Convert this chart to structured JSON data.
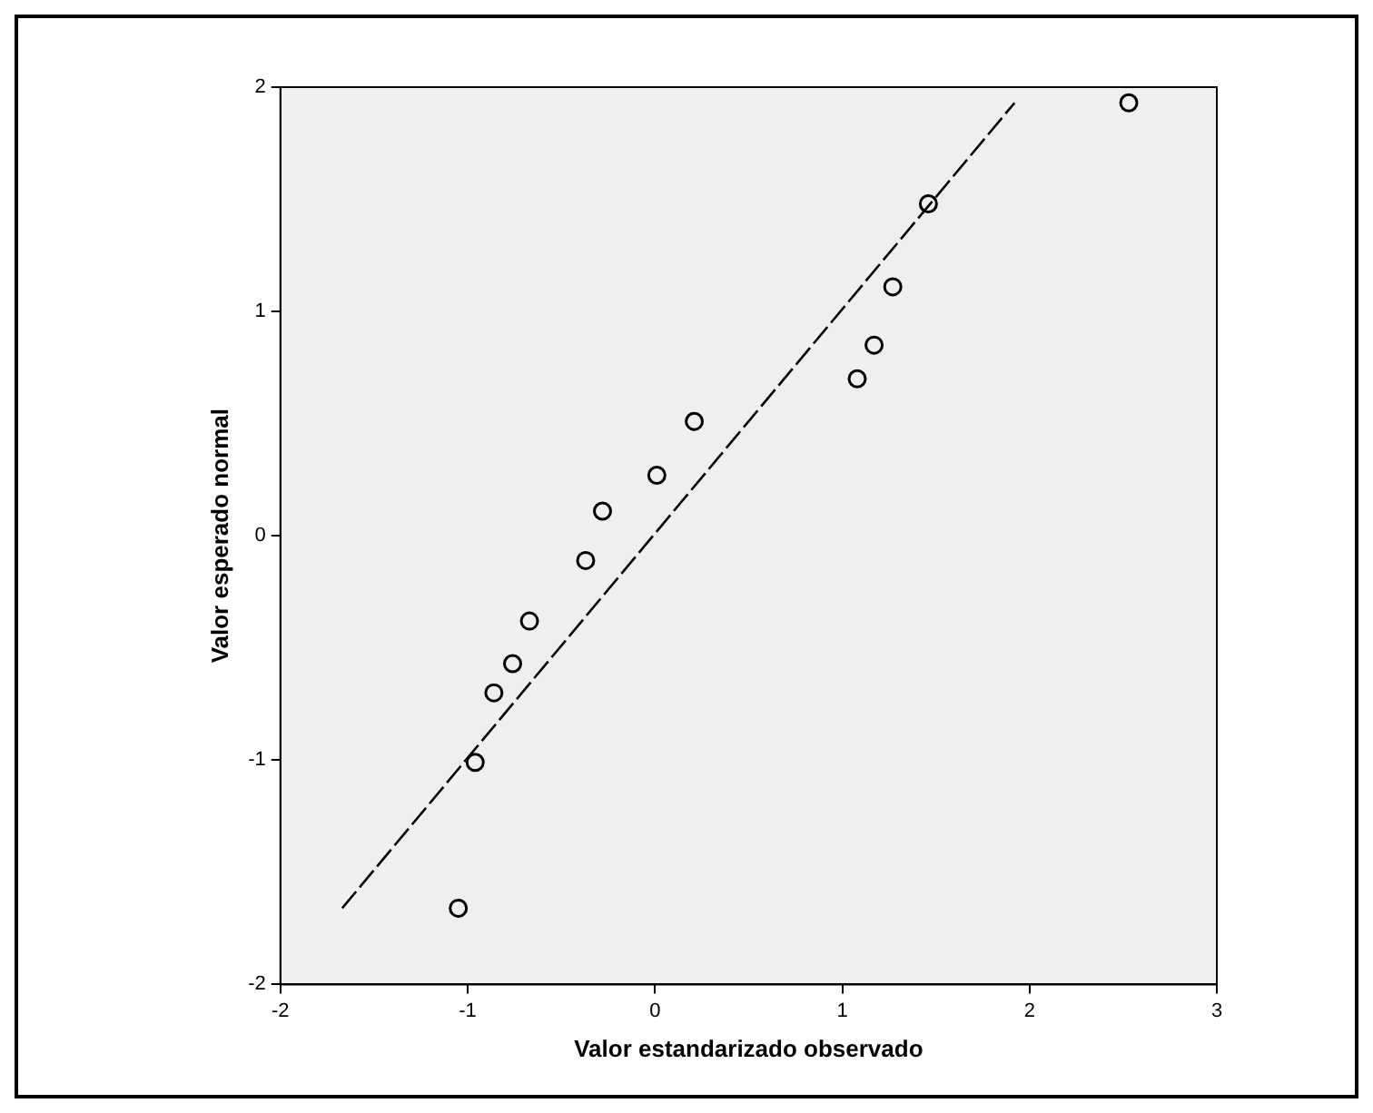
{
  "chart_data": {
    "type": "scatter",
    "xlabel": "Valor estandarizado observado",
    "ylabel": "Valor esperado normal",
    "xlim": [
      -2,
      3
    ],
    "xticks": [
      -2,
      -1,
      0,
      1,
      2,
      3
    ],
    "ylim": [
      -2,
      2
    ],
    "yticks": [
      -2,
      -1,
      0,
      1,
      2
    ],
    "grid": false,
    "legend": false,
    "marker": "circle",
    "series": [
      {
        "color": "#000000",
        "x": [
          2.53,
          1.46,
          1.27,
          1.17,
          1.08,
          0.21,
          0.01,
          -0.28,
          -0.37,
          -0.67,
          -0.76,
          -0.86,
          -0.96,
          -1.05
        ],
        "values": [
          1.93,
          1.48,
          1.11,
          0.85,
          0.7,
          0.51,
          0.27,
          0.11,
          -0.11,
          -0.38,
          -0.57,
          -0.7,
          -1.01,
          -1.66
        ]
      },
      {
        "type": "line",
        "color": "#000000",
        "marker": "none",
        "line_style": "dashed",
        "x": [
          -1.67,
          1.92
        ],
        "values": [
          -1.66,
          1.93
        ]
      }
    ]
  }
}
